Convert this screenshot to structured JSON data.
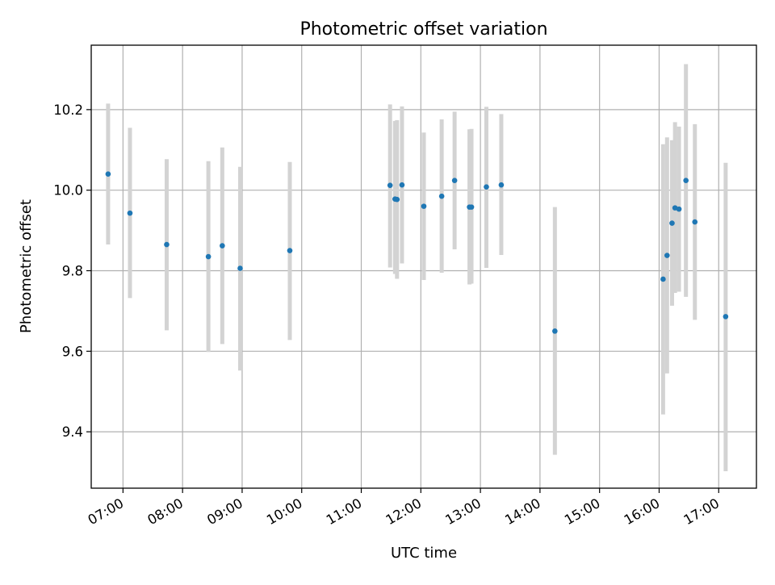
{
  "chart_data": {
    "type": "scatter",
    "title": "Photometric offset variation",
    "xlabel": "UTC time",
    "ylabel": "Photometric offset",
    "xlim": [
      "06:28",
      "17:38"
    ],
    "ylim": [
      9.26,
      10.36
    ],
    "xticks": [
      "07:00",
      "08:00",
      "09:00",
      "10:00",
      "11:00",
      "12:00",
      "13:00",
      "14:00",
      "15:00",
      "16:00",
      "17:00"
    ],
    "yticks": [
      "9.4",
      "9.6",
      "9.8",
      "10.0",
      "10.2"
    ],
    "grid": true,
    "colors": {
      "point": "#1f77b4",
      "errorbar": "#d3d3d3",
      "grid": "#b0b0b0"
    },
    "series": [
      {
        "points": [
          {
            "x": "06:45",
            "y": 10.04,
            "ylow": 9.865,
            "yhigh": 10.215
          },
          {
            "x": "07:07",
            "y": 9.943,
            "ylow": 9.732,
            "yhigh": 10.155
          },
          {
            "x": "07:44",
            "y": 9.865,
            "ylow": 9.652,
            "yhigh": 10.077
          },
          {
            "x": "08:26",
            "y": 9.835,
            "ylow": 9.598,
            "yhigh": 10.072
          },
          {
            "x": "08:40",
            "y": 9.862,
            "ylow": 9.618,
            "yhigh": 10.106
          },
          {
            "x": "08:58",
            "y": 9.806,
            "ylow": 9.552,
            "yhigh": 10.058
          },
          {
            "x": "09:48",
            "y": 9.85,
            "ylow": 9.628,
            "yhigh": 10.07
          },
          {
            "x": "11:29",
            "y": 10.012,
            "ylow": 9.808,
            "yhigh": 10.213
          },
          {
            "x": "11:34",
            "y": 9.978,
            "ylow": 9.792,
            "yhigh": 10.172
          },
          {
            "x": "11:36",
            "y": 9.977,
            "ylow": 9.78,
            "yhigh": 10.174
          },
          {
            "x": "11:41",
            "y": 10.013,
            "ylow": 9.818,
            "yhigh": 10.208
          },
          {
            "x": "12:03",
            "y": 9.96,
            "ylow": 9.777,
            "yhigh": 10.143
          },
          {
            "x": "12:21",
            "y": 9.985,
            "ylow": 9.795,
            "yhigh": 10.176
          },
          {
            "x": "12:34",
            "y": 10.024,
            "ylow": 9.853,
            "yhigh": 10.195
          },
          {
            "x": "12:49",
            "y": 9.958,
            "ylow": 9.766,
            "yhigh": 10.151
          },
          {
            "x": "12:51",
            "y": 9.958,
            "ylow": 9.768,
            "yhigh": 10.152
          },
          {
            "x": "13:06",
            "y": 10.008,
            "ylow": 9.807,
            "yhigh": 10.207
          },
          {
            "x": "13:21",
            "y": 10.013,
            "ylow": 9.839,
            "yhigh": 10.189
          },
          {
            "x": "14:15",
            "y": 9.65,
            "ylow": 9.343,
            "yhigh": 9.958
          },
          {
            "x": "16:04",
            "y": 9.779,
            "ylow": 9.443,
            "yhigh": 10.114
          },
          {
            "x": "16:08",
            "y": 9.838,
            "ylow": 9.545,
            "yhigh": 10.131
          },
          {
            "x": "16:13",
            "y": 9.918,
            "ylow": 9.713,
            "yhigh": 10.124
          },
          {
            "x": "16:16",
            "y": 9.956,
            "ylow": 9.745,
            "yhigh": 10.169
          },
          {
            "x": "16:20",
            "y": 9.953,
            "ylow": 9.748,
            "yhigh": 10.158
          },
          {
            "x": "16:27",
            "y": 10.024,
            "ylow": 9.735,
            "yhigh": 10.313
          },
          {
            "x": "16:36",
            "y": 9.921,
            "ylow": 9.678,
            "yhigh": 10.164
          },
          {
            "x": "17:07",
            "y": 9.686,
            "ylow": 9.302,
            "yhigh": 10.068
          }
        ]
      }
    ]
  }
}
